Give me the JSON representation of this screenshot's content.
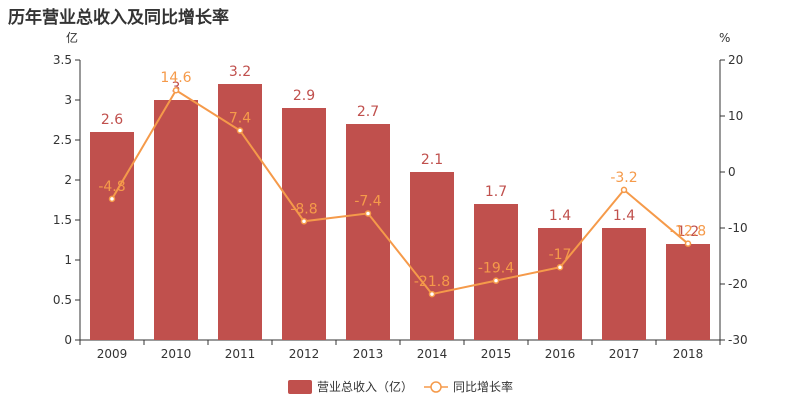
{
  "title": "历年营业总收入及同比增长率",
  "colors": {
    "bar": "#c0504d",
    "line": "#f59a4a",
    "bar_label": "#c0504d",
    "line_label": "#f59a4a",
    "axis": "#333333"
  },
  "chart_data": {
    "type": "bar",
    "title": "历年营业总收入及同比增长率",
    "categories": [
      "2009",
      "2010",
      "2011",
      "2012",
      "2013",
      "2014",
      "2015",
      "2016",
      "2017",
      "2018"
    ],
    "series": [
      {
        "name": "营业总收入（亿）",
        "type": "bar",
        "axis": "left",
        "values": [
          2.6,
          3.0,
          3.2,
          2.9,
          2.7,
          2.1,
          1.7,
          1.4,
          1.4,
          1.2
        ],
        "labels": [
          "2.6",
          "3",
          "3.2",
          "2.9",
          "2.7",
          "2.1",
          "1.7",
          "1.4",
          "1.4",
          "1.2"
        ]
      },
      {
        "name": "同比增长率",
        "type": "line",
        "axis": "right",
        "values": [
          -4.8,
          14.6,
          7.4,
          -8.8,
          -7.4,
          -21.8,
          -19.4,
          -17,
          -3.2,
          -12.8
        ],
        "labels": [
          "-4.8",
          "14.6",
          "7.4",
          "-8.8",
          "-7.4",
          "-21.8",
          "-19.4",
          "-17",
          "-3.2",
          "-12.8"
        ]
      }
    ],
    "ylabel_left": "亿",
    "ylabel_right": "%",
    "ylim_left": [
      0,
      3.5
    ],
    "ylim_right": [
      -30,
      20
    ],
    "yticks_left": [
      "0",
      "0.5",
      "1",
      "1.5",
      "2",
      "2.5",
      "3",
      "3.5"
    ],
    "yticks_right": [
      "-30",
      "-20",
      "-10",
      "0",
      "10",
      "20"
    ],
    "grid": false,
    "legend_position": "bottom-center"
  }
}
